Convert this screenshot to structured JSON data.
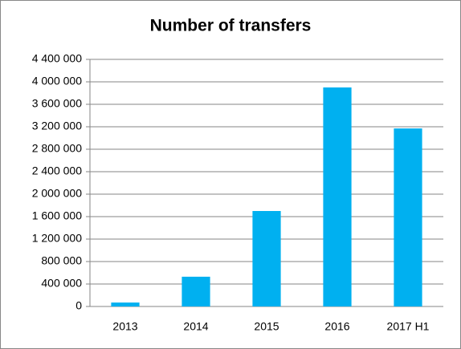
{
  "chart_data": {
    "type": "bar",
    "title": "Number of transfers",
    "categories": [
      "2013",
      "2014",
      "2015",
      "2016",
      "2017 H1"
    ],
    "values": [
      70000,
      530000,
      1700000,
      3900000,
      3170000
    ],
    "color": "#00b0f0",
    "ylim": [
      0,
      4400000
    ],
    "yticks": [
      0,
      {
        "value": 400000,
        "label": "400 000"
      },
      {
        "value": 800000,
        "label": "800 000"
      },
      {
        "value": 1200000,
        "label": "1 200 000"
      },
      {
        "value": 1600000,
        "label": "1 600 000"
      },
      {
        "value": 2000000,
        "label": "2 000 000"
      },
      {
        "value": 2400000,
        "label": "2 400 000"
      },
      {
        "value": 2800000,
        "label": "2 800 000"
      },
      {
        "value": 3200000,
        "label": "3 200 000"
      },
      {
        "value": 3600000,
        "label": "3 600 000"
      },
      {
        "value": 4000000,
        "label": "4 000 000"
      },
      {
        "value": 4400000,
        "label": "4 400 000"
      }
    ],
    "grid": true
  }
}
